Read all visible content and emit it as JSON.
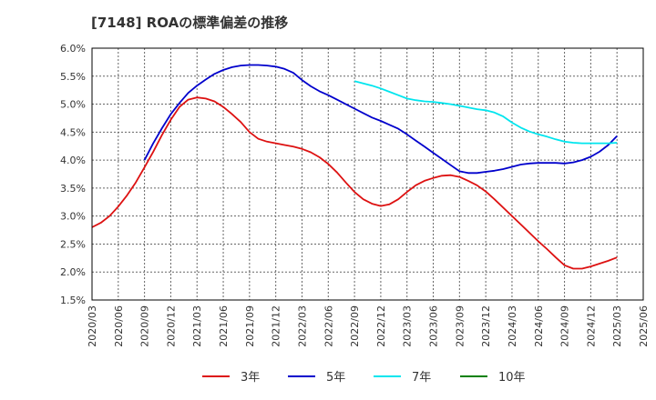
{
  "chart_data": {
    "type": "line",
    "title": "[7148]  ROAの標準偏差の推移",
    "xlabel": "",
    "ylabel": "",
    "ylim": [
      1.5,
      6.0
    ],
    "grid": true,
    "legend_position": "bottom",
    "y_ticks": [
      "1.5%",
      "2.0%",
      "2.5%",
      "3.0%",
      "3.5%",
      "4.0%",
      "4.5%",
      "5.0%",
      "5.5%",
      "6.0%"
    ],
    "x_ticks": [
      "2020/03",
      "2020/06",
      "2020/09",
      "2020/12",
      "2021/03",
      "2021/06",
      "2021/09",
      "2021/12",
      "2022/03",
      "2022/06",
      "2022/09",
      "2022/12",
      "2023/03",
      "2023/06",
      "2023/09",
      "2023/12",
      "2024/03",
      "2024/06",
      "2024/09",
      "2024/12",
      "2025/03",
      "2025/06"
    ],
    "series": [
      {
        "name": "3年",
        "color": "#dd1111",
        "points": [
          [
            "2020/03",
            2.8
          ],
          [
            "2020/04",
            2.88
          ],
          [
            "2020/05",
            3.0
          ],
          [
            "2020/06",
            3.17
          ],
          [
            "2020/07",
            3.37
          ],
          [
            "2020/08",
            3.6
          ],
          [
            "2020/09",
            3.87
          ],
          [
            "2020/10",
            4.15
          ],
          [
            "2020/11",
            4.45
          ],
          [
            "2020/12",
            4.72
          ],
          [
            "2021/01",
            4.95
          ],
          [
            "2021/02",
            5.08
          ],
          [
            "2021/03",
            5.12
          ],
          [
            "2021/04",
            5.1
          ],
          [
            "2021/05",
            5.05
          ],
          [
            "2021/06",
            4.95
          ],
          [
            "2021/07",
            4.82
          ],
          [
            "2021/08",
            4.68
          ],
          [
            "2021/09",
            4.5
          ],
          [
            "2021/10",
            4.38
          ],
          [
            "2021/11",
            4.33
          ],
          [
            "2021/12",
            4.3
          ],
          [
            "2022/01",
            4.27
          ],
          [
            "2022/02",
            4.24
          ],
          [
            "2022/03",
            4.2
          ],
          [
            "2022/04",
            4.14
          ],
          [
            "2022/05",
            4.05
          ],
          [
            "2022/06",
            3.93
          ],
          [
            "2022/07",
            3.78
          ],
          [
            "2022/08",
            3.6
          ],
          [
            "2022/09",
            3.43
          ],
          [
            "2022/10",
            3.3
          ],
          [
            "2022/11",
            3.22
          ],
          [
            "2022/12",
            3.18
          ],
          [
            "2023/01",
            3.21
          ],
          [
            "2023/02",
            3.3
          ],
          [
            "2023/03",
            3.43
          ],
          [
            "2023/04",
            3.55
          ],
          [
            "2023/05",
            3.63
          ],
          [
            "2023/06",
            3.68
          ],
          [
            "2023/07",
            3.72
          ],
          [
            "2023/08",
            3.73
          ],
          [
            "2023/09",
            3.7
          ],
          [
            "2023/10",
            3.63
          ],
          [
            "2023/11",
            3.55
          ],
          [
            "2023/12",
            3.44
          ],
          [
            "2024/01",
            3.3
          ],
          [
            "2024/02",
            3.15
          ],
          [
            "2024/03",
            3.0
          ],
          [
            "2024/04",
            2.85
          ],
          [
            "2024/05",
            2.7
          ],
          [
            "2024/06",
            2.55
          ],
          [
            "2024/07",
            2.41
          ],
          [
            "2024/08",
            2.26
          ],
          [
            "2024/09",
            2.12
          ],
          [
            "2024/10",
            2.06
          ],
          [
            "2024/11",
            2.06
          ],
          [
            "2024/12",
            2.1
          ],
          [
            "2025/01",
            2.15
          ],
          [
            "2025/02",
            2.2
          ],
          [
            "2025/03",
            2.26
          ]
        ]
      },
      {
        "name": "5年",
        "color": "#0000cc",
        "points": [
          [
            "2020/09",
            4.0
          ],
          [
            "2020/10",
            4.3
          ],
          [
            "2020/11",
            4.57
          ],
          [
            "2020/12",
            4.82
          ],
          [
            "2021/01",
            5.02
          ],
          [
            "2021/02",
            5.2
          ],
          [
            "2021/03",
            5.33
          ],
          [
            "2021/04",
            5.44
          ],
          [
            "2021/05",
            5.54
          ],
          [
            "2021/06",
            5.61
          ],
          [
            "2021/07",
            5.66
          ],
          [
            "2021/08",
            5.69
          ],
          [
            "2021/09",
            5.7
          ],
          [
            "2021/10",
            5.7
          ],
          [
            "2021/11",
            5.69
          ],
          [
            "2021/12",
            5.67
          ],
          [
            "2022/01",
            5.63
          ],
          [
            "2022/02",
            5.56
          ],
          [
            "2022/03",
            5.43
          ],
          [
            "2022/04",
            5.32
          ],
          [
            "2022/05",
            5.23
          ],
          [
            "2022/06",
            5.16
          ],
          [
            "2022/07",
            5.08
          ],
          [
            "2022/08",
            5.0
          ],
          [
            "2022/09",
            4.92
          ],
          [
            "2022/10",
            4.84
          ],
          [
            "2022/11",
            4.76
          ],
          [
            "2022/12",
            4.7
          ],
          [
            "2023/01",
            4.63
          ],
          [
            "2023/02",
            4.56
          ],
          [
            "2023/03",
            4.46
          ],
          [
            "2023/04",
            4.35
          ],
          [
            "2023/05",
            4.24
          ],
          [
            "2023/06",
            4.13
          ],
          [
            "2023/07",
            4.02
          ],
          [
            "2023/08",
            3.91
          ],
          [
            "2023/09",
            3.8
          ],
          [
            "2023/10",
            3.77
          ],
          [
            "2023/11",
            3.77
          ],
          [
            "2023/12",
            3.79
          ],
          [
            "2024/01",
            3.81
          ],
          [
            "2024/02",
            3.84
          ],
          [
            "2024/03",
            3.88
          ],
          [
            "2024/04",
            3.92
          ],
          [
            "2024/05",
            3.94
          ],
          [
            "2024/06",
            3.95
          ],
          [
            "2024/07",
            3.95
          ],
          [
            "2024/08",
            3.95
          ],
          [
            "2024/09",
            3.94
          ],
          [
            "2024/10",
            3.96
          ],
          [
            "2024/11",
            4.0
          ],
          [
            "2024/12",
            4.06
          ],
          [
            "2025/01",
            4.15
          ],
          [
            "2025/02",
            4.27
          ],
          [
            "2025/03",
            4.43
          ]
        ]
      },
      {
        "name": "7年",
        "color": "#00e5ee",
        "points": [
          [
            "2022/09",
            5.41
          ],
          [
            "2022/10",
            5.37
          ],
          [
            "2022/11",
            5.33
          ],
          [
            "2022/12",
            5.28
          ],
          [
            "2023/01",
            5.22
          ],
          [
            "2023/02",
            5.16
          ],
          [
            "2023/03",
            5.1
          ],
          [
            "2023/04",
            5.07
          ],
          [
            "2023/05",
            5.05
          ],
          [
            "2023/06",
            5.04
          ],
          [
            "2023/07",
            5.02
          ],
          [
            "2023/08",
            5.0
          ],
          [
            "2023/09",
            4.97
          ],
          [
            "2023/10",
            4.94
          ],
          [
            "2023/11",
            4.91
          ],
          [
            "2023/12",
            4.89
          ],
          [
            "2024/01",
            4.85
          ],
          [
            "2024/02",
            4.78
          ],
          [
            "2024/03",
            4.67
          ],
          [
            "2024/04",
            4.58
          ],
          [
            "2024/05",
            4.51
          ],
          [
            "2024/06",
            4.46
          ],
          [
            "2024/07",
            4.42
          ],
          [
            "2024/08",
            4.37
          ],
          [
            "2024/09",
            4.33
          ],
          [
            "2024/10",
            4.31
          ],
          [
            "2024/11",
            4.3
          ],
          [
            "2024/12",
            4.3
          ],
          [
            "2025/01",
            4.3
          ],
          [
            "2025/02",
            4.3
          ],
          [
            "2025/03",
            4.31
          ]
        ]
      },
      {
        "name": "10年",
        "color": "#008000",
        "points": []
      }
    ]
  }
}
